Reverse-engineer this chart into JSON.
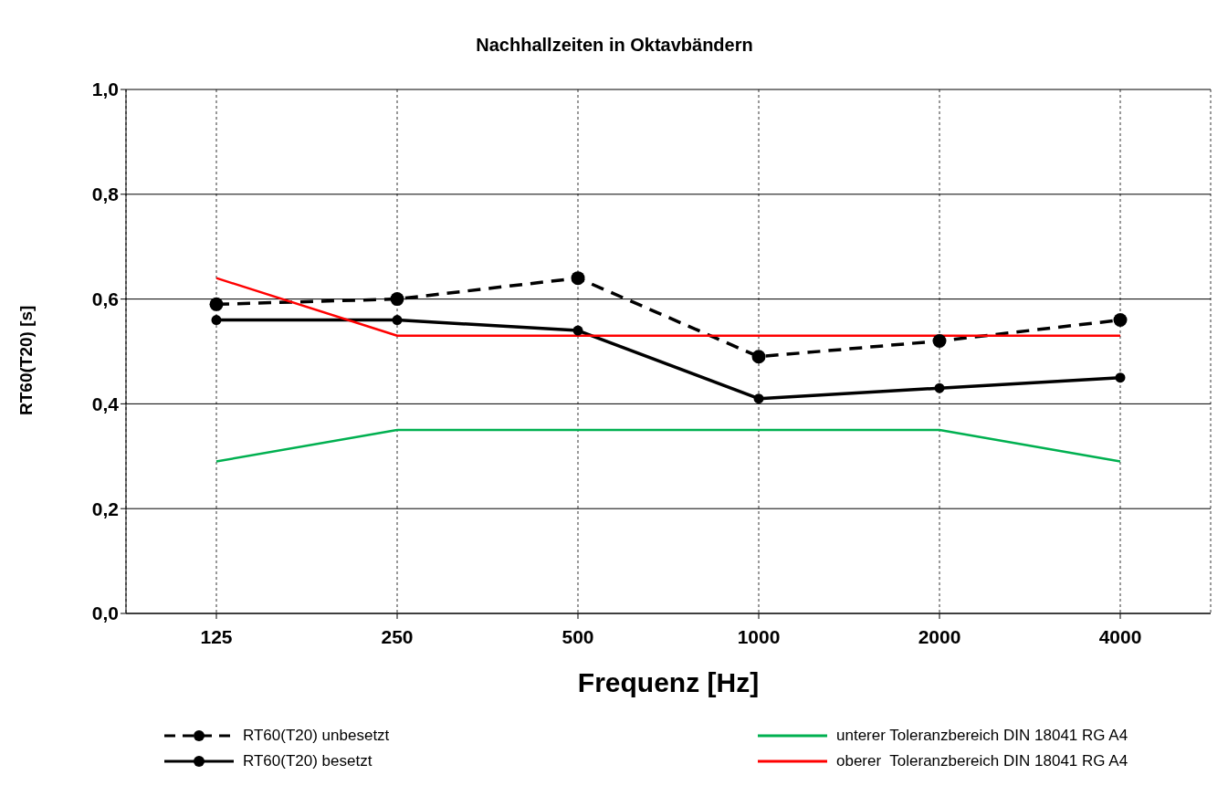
{
  "chart_data": {
    "type": "line",
    "title": "Nachhallzeiten in Oktavbändern",
    "xlabel": "Frequenz [Hz]",
    "ylabel": "RT60(T20) [s]",
    "categories": [
      "125",
      "250",
      "500",
      "1000",
      "2000",
      "4000"
    ],
    "series": [
      {
        "name": "RT60(T20) unbesetzt",
        "color": "#000000",
        "line_style": "dashed",
        "marker": "circle",
        "values": [
          0.59,
          0.6,
          0.64,
          0.49,
          0.52,
          0.56
        ]
      },
      {
        "name": "RT60(T20) besetzt",
        "color": "#000000",
        "line_style": "solid",
        "marker": "circle",
        "values": [
          0.56,
          0.56,
          0.54,
          0.41,
          0.43,
          0.45
        ]
      },
      {
        "name": "unterer Toleranzbereich DIN 18041 RG A4",
        "color": "#00b050",
        "line_style": "solid",
        "marker": "none",
        "values": [
          0.29,
          0.35,
          0.35,
          0.35,
          0.35,
          0.29
        ]
      },
      {
        "name": "oberer  Toleranzbereich DIN 18041 RG A4",
        "color": "#ff0000",
        "line_style": "solid",
        "marker": "none",
        "values": [
          0.64,
          0.53,
          0.53,
          0.53,
          0.53,
          0.53
        ]
      }
    ],
    "ylim": [
      0,
      1
    ],
    "yticks": [
      {
        "value": 0,
        "label": "0,0"
      },
      {
        "value": 0.2,
        "label": "0,2"
      },
      {
        "value": 0.4,
        "label": "0,4"
      },
      {
        "value": 0.6,
        "label": "0,6"
      },
      {
        "value": 0.8,
        "label": "0,8"
      },
      {
        "value": 1,
        "label": "1,0"
      }
    ],
    "grid": true,
    "legend": "bottom"
  }
}
